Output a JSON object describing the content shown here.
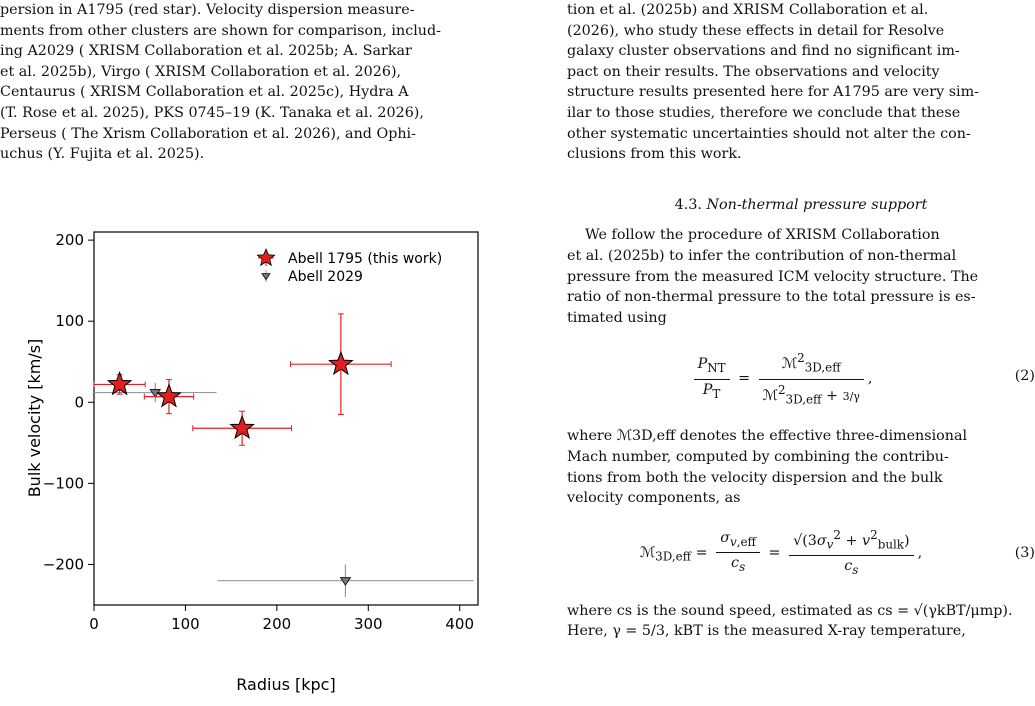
{
  "left_caption": {
    "lines": [
      "persion in A1795 (red star). Velocity dispersion measure-",
      "ments from other clusters are shown for comparison, includ-",
      "ing A2029 ( XRISM Collaboration et al. 2025b; A. Sarkar",
      "et al. 2025b), Virgo ( XRISM Collaboration et al. 2026),",
      "Centaurus ( XRISM Collaboration et al. 2025c), Hydra A",
      "(T. Rose et al. 2025), PKS 0745–19 (K. Tanaka et al. 2026),",
      "Perseus ( The Xrism Collaboration et al. 2026), and Ophi-",
      "uchus (Y. Fujita et al. 2025)."
    ]
  },
  "right_text": {
    "intro_lines": [
      "tion et al. (2025b) and  XRISM Collaboration et al.",
      "(2026), who study these effects in detail for Resolve",
      "galaxy cluster observations and find no significant im-",
      "pact on their results.  The observations and velocity",
      "structure results presented here for A1795 are very sim-",
      "ilar to those studies, therefore we conclude that these",
      "other systematic uncertainties should not alter the con-",
      "clusions from this work."
    ],
    "section_number": "4.3.",
    "section_title": "Non-thermal pressure support",
    "para1_lines": [
      "We follow the procedure of  XRISM Collaboration",
      "et al. (2025b) to infer the contribution of non-thermal",
      "pressure from the measured ICM velocity structure. The",
      "ratio of non-thermal pressure to the total pressure is es-",
      "timated using"
    ],
    "eq2_number": "(2)",
    "para2_lines": [
      "where ℳ3D,eff denotes the effective three-dimensional",
      "Mach number, computed by combining the contribu-",
      "tions from both the velocity dispersion and the bulk",
      "velocity components, as"
    ],
    "eq3_number": "(3)",
    "para3_lines": [
      "where cs is the sound speed, estimated as cs = √(γkBT/μmp).",
      "Here, γ = 5/3, kBT is the measured X-ray temperature,"
    ]
  },
  "chart_data": {
    "type": "scatter",
    "xlabel": "Radius [kpc]",
    "ylabel": "Bulk velocity [km/s]",
    "xlim": [
      0,
      420
    ],
    "ylim": [
      -250,
      210
    ],
    "xticks": [
      0,
      100,
      200,
      300,
      400
    ],
    "yticks": [
      200,
      100,
      0,
      -100,
      -200
    ],
    "legend_position": "top-right",
    "series": [
      {
        "name": "Abell 1795 (this work)",
        "color": "#e02020",
        "marker": "star",
        "points": [
          {
            "x": 28,
            "y": 22,
            "xerr": 28,
            "yerr": 12
          },
          {
            "x": 82,
            "y": 7,
            "xerr": 27,
            "yerr": 21
          },
          {
            "x": 162,
            "y": -32,
            "xerr": 54,
            "yerr": 21
          },
          {
            "x": 270,
            "y": 47,
            "xerr": 55,
            "yerr": 62
          }
        ]
      },
      {
        "name": "Abell 2029",
        "color": "#888888",
        "marker": "triangle-down",
        "points": [
          {
            "x": 67,
            "y": 12,
            "xerr": 67,
            "yerr": 12
          },
          {
            "x": 275,
            "y": -220,
            "xerr": 140,
            "yerr": 20
          }
        ]
      }
    ]
  }
}
